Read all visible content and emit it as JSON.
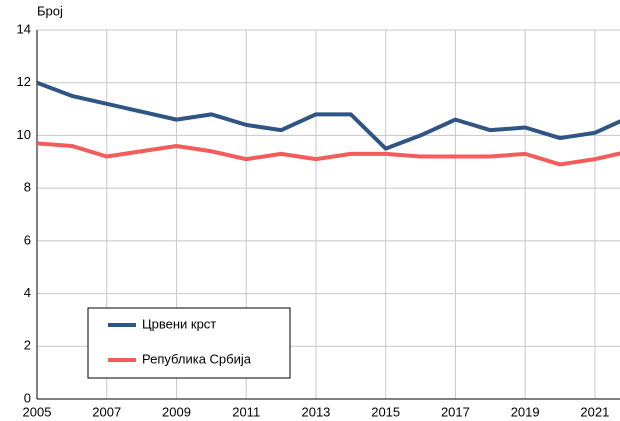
{
  "chart_data": {
    "type": "line",
    "y_label": "Број",
    "x": [
      2005,
      2006,
      2007,
      2008,
      2009,
      2010,
      2011,
      2012,
      2013,
      2014,
      2015,
      2016,
      2017,
      2018,
      2019,
      2020,
      2021,
      2022
    ],
    "series": [
      {
        "name": "Црвени крст",
        "color": "#2e5583",
        "values": [
          12.0,
          11.5,
          11.2,
          10.9,
          10.6,
          10.8,
          10.4,
          10.2,
          10.8,
          10.8,
          9.5,
          10.0,
          10.6,
          10.2,
          10.3,
          9.9,
          10.1,
          10.7
        ]
      },
      {
        "name": "Република Србија",
        "color": "#f45b5b",
        "values": [
          9.7,
          9.6,
          9.2,
          9.4,
          9.6,
          9.4,
          9.1,
          9.3,
          9.1,
          9.3,
          9.3,
          9.2,
          9.2,
          9.2,
          9.3,
          8.9,
          9.1,
          9.4
        ]
      }
    ],
    "xlim": [
      2005,
      2021.72
    ],
    "xticks": [
      2005,
      2007,
      2009,
      2011,
      2013,
      2015,
      2017,
      2019,
      2021
    ],
    "ylim": [
      0,
      14
    ],
    "yticks": [
      0,
      2,
      4,
      6,
      8,
      10,
      12,
      14
    ],
    "grid": true,
    "legend": "lower left"
  }
}
